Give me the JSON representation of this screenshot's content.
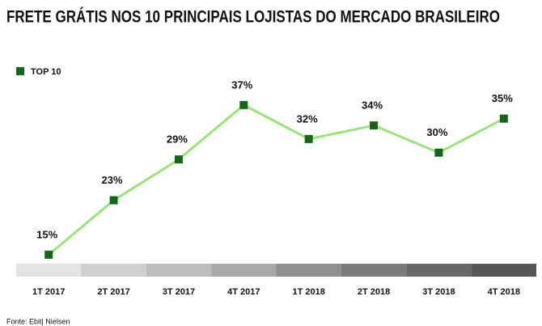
{
  "chart_data": {
    "type": "line",
    "title": "FRETE GRÁTIS NOS 10 PRINCIPAIS LOJISTAS DO MERCADO BRASILEIRO",
    "categories": [
      "1T 2017",
      "2T 2017",
      "3T 2017",
      "4T 2017",
      "1T 2018",
      "2T 2018",
      "3T 2018",
      "4T 2018"
    ],
    "series": [
      {
        "name": "TOP 10",
        "color": "#9be27d",
        "marker_color": "#17651a",
        "values": [
          15,
          23,
          29,
          37,
          32,
          34,
          30,
          35
        ],
        "value_labels": [
          "15%",
          "23%",
          "29%",
          "37%",
          "32%",
          "34%",
          "30%",
          "35%"
        ]
      }
    ],
    "source": "Fonte: Ebit| Nielsen"
  }
}
